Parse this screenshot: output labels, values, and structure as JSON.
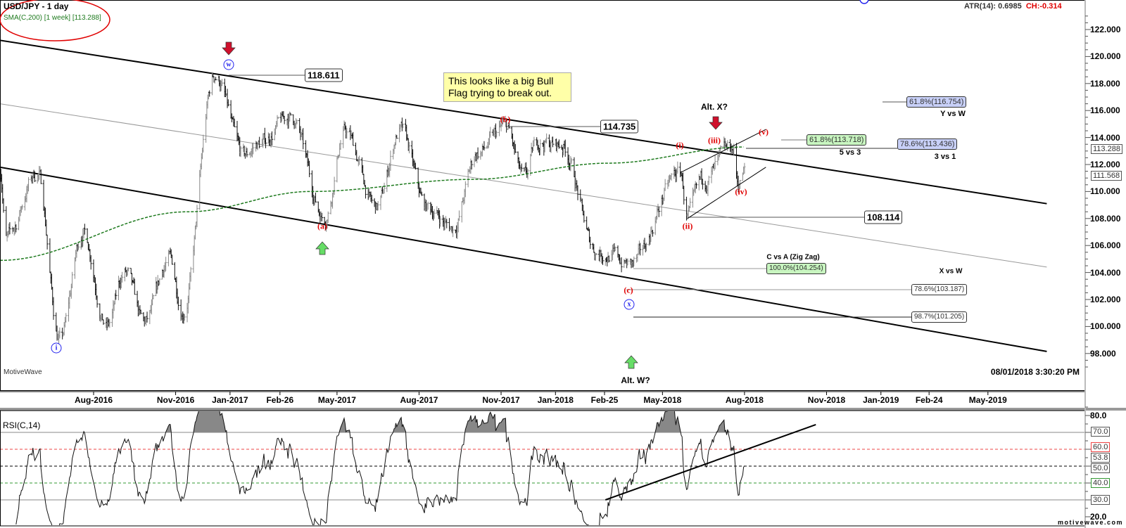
{
  "header": {
    "symbol": "USD/JPY - 1 day",
    "sma": "SMA(C,200) [1 week] [113.288]",
    "atr": "ATR(14): 0.6985",
    "ch": "CH:-0.314",
    "brand": "MotiveWave",
    "timestamp": "08/01/2018 3:30:20 PM",
    "watermark": "motivewave.com"
  },
  "colors": {
    "sma": "#1e7a1e",
    "wave": "#e00000",
    "circle": "#2222ee",
    "down_arrow": "#d0102c",
    "up_arrow": "#66dd66",
    "note_bg": "#ffffa8",
    "fib_green": "#c8f5c0",
    "fib_blue": "#c8d0f8"
  },
  "note": "This looks like a big Bull Flag trying to break out.",
  "waves": {
    "w": "w",
    "i_major": "i",
    "x": "x",
    "a": "(a)",
    "b": "(b)",
    "c": "(c)",
    "i": "(i)",
    "ii": "(ii)",
    "iii": "(iii)",
    "iv": "(iv)",
    "v": "(v)"
  },
  "labels": {
    "alt_x": "Alt. X?",
    "alt_w": "Alt. W?",
    "five_vs_three": "5 vs 3",
    "three_vs_one": "3 vs 1",
    "y_vs_w": "Y vs W",
    "c_vs_a": "C vs A (Zig Zag)",
    "x_vs_w": "X vs W"
  },
  "levels": {
    "p118": "118.611",
    "p114": "114.735",
    "p108": "108.114",
    "f1": "61.8%(113.718)",
    "f2": "78.6%(113.436)",
    "f3": "61.8%(116.754)",
    "f4": "100.0%(104.254)",
    "f5": "78.6%(103.187)",
    "f6": "98.7%(101.205)"
  },
  "tags": {
    "sma": "113.288",
    "last": "111.568",
    "rsi70": "70.0",
    "rsi60": "60.0",
    "rsi_last": "53.8",
    "rsi50": "50.0",
    "rsi40": "40.0",
    "rsi30": "30.0"
  },
  "rsi_title": "RSI(C,14)",
  "chart_data": {
    "type": "ohlc",
    "title": "USD/JPY - 1 day",
    "ylim": [
      96.5,
      123.5
    ],
    "y_ticks": [
      "98.000",
      "100.000",
      "102.000",
      "104.000",
      "106.000",
      "108.000",
      "110.000",
      "112.000",
      "114.000",
      "116.000",
      "118.000",
      "120.000",
      "122.000"
    ],
    "x_ticks": [
      {
        "date": "2016-08-01",
        "label": "Aug-2016"
      },
      {
        "date": "2016-11-01",
        "label": "Nov-2016"
      },
      {
        "date": "2017-01-01",
        "label": "Jan-2017"
      },
      {
        "date": "2017-02-26",
        "label": "Feb-26"
      },
      {
        "date": "2017-05-01",
        "label": "May-2017"
      },
      {
        "date": "2017-08-01",
        "label": "Aug-2017"
      },
      {
        "date": "2017-11-01",
        "label": "Nov-2017"
      },
      {
        "date": "2018-01-01",
        "label": "Jan-2018"
      },
      {
        "date": "2018-02-25",
        "label": "Feb-25"
      },
      {
        "date": "2018-05-01",
        "label": "May-2018"
      },
      {
        "date": "2018-08-01",
        "label": "Aug-2018"
      },
      {
        "date": "2018-11-01",
        "label": "Nov-2018"
      },
      {
        "date": "2019-01-01",
        "label": "Jan-2019"
      },
      {
        "date": "2019-02-24",
        "label": "Feb-24"
      },
      {
        "date": "2019-05-01",
        "label": "May-2019"
      }
    ],
    "price_swings": [
      [
        "2016-04-18",
        111.8
      ],
      [
        "2016-04-25",
        106.5
      ],
      [
        "2016-05-30",
        111.4
      ],
      [
        "2016-06-24",
        99.0
      ],
      [
        "2016-07-20",
        107.0
      ],
      [
        "2016-08-16",
        100.0
      ],
      [
        "2016-09-05",
        104.0
      ],
      [
        "2016-09-27",
        100.2
      ],
      [
        "2016-10-25",
        105.0
      ],
      [
        "2016-11-09",
        101.2
      ],
      [
        "2016-12-15",
        118.6
      ],
      [
        "2017-01-17",
        112.6
      ],
      [
        "2017-02-01",
        113.5
      ],
      [
        "2017-03-10",
        115.5
      ],
      [
        "2017-04-17",
        108.1
      ],
      [
        "2017-05-10",
        114.4
      ],
      [
        "2017-06-14",
        108.8
      ],
      [
        "2017-07-11",
        114.5
      ],
      [
        "2017-08-10",
        108.8
      ],
      [
        "2017-09-08",
        107.3
      ],
      [
        "2017-10-06",
        112.9
      ],
      [
        "2017-11-06",
        114.7
      ],
      [
        "2017-11-27",
        110.9
      ],
      [
        "2017-12-12",
        113.7
      ],
      [
        "2018-01-08",
        113.4
      ],
      [
        "2018-02-16",
        105.6
      ],
      [
        "2018-03-02",
        105.3
      ],
      [
        "2018-03-26",
        104.6
      ],
      [
        "2018-05-21",
        111.4
      ],
      [
        "2018-05-29",
        108.1
      ],
      [
        "2018-06-15",
        110.8
      ],
      [
        "2018-07-19",
        113.2
      ],
      [
        "2018-07-25",
        110.6
      ],
      [
        "2018-08-01",
        111.6
      ]
    ],
    "sma200": [
      [
        "2016-04-18",
        104.9
      ],
      [
        "2016-11-15",
        108.5
      ],
      [
        "2017-04-01",
        110.0
      ],
      [
        "2017-10-01",
        110.9
      ],
      [
        "2018-03-01",
        112.1
      ],
      [
        "2018-08-01",
        113.3
      ]
    ],
    "channel_upper": [
      [
        "2016-04-18",
        121.2
      ],
      [
        "2019-07-06",
        109.1
      ]
    ],
    "channel_lower": [
      [
        "2016-04-18",
        111.8
      ],
      [
        "2019-07-06",
        98.15
      ]
    ],
    "channel_mid": [
      [
        "2016-04-18",
        116.5
      ],
      [
        "2019-07-06",
        104.4
      ]
    ],
    "wedge_upper": [
      [
        "2018-05-21",
        111.4
      ],
      [
        "2018-08-25",
        114.6
      ]
    ],
    "wedge_lower": [
      [
        "2018-05-29",
        108.0
      ],
      [
        "2018-08-25",
        111.8
      ]
    ],
    "rsi": {
      "title": "RSI(C,14)",
      "period": 14,
      "ylim": [
        18,
        83
      ],
      "y_ticks": [
        "20.0",
        "80.0"
      ],
      "levels": [
        70,
        60,
        50,
        40,
        30
      ],
      "last": 53.8,
      "trendline": [
        [
          "2018-02-26",
          30
        ],
        [
          "2018-10-20",
          74.6
        ]
      ]
    }
  }
}
